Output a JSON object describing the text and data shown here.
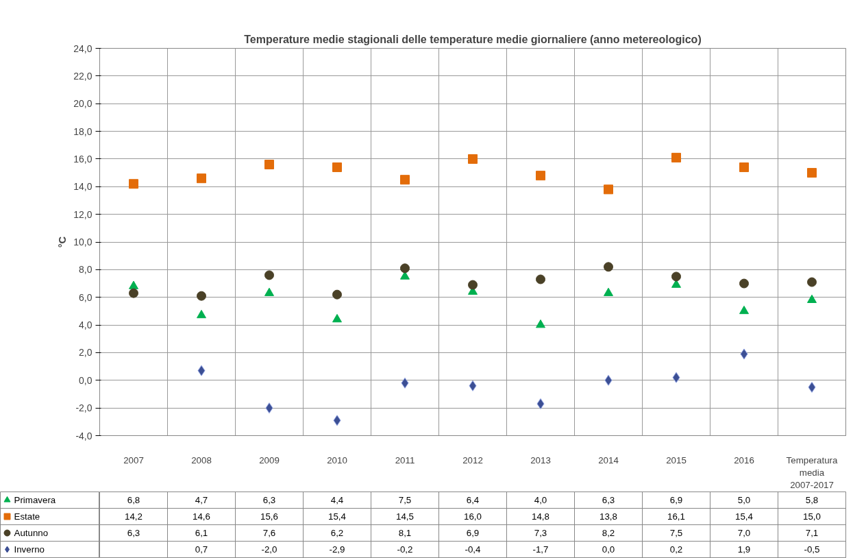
{
  "chart_data": {
    "type": "scatter",
    "title": "Temperature medie stagionali delle temperature medie giornaliere (anno metereologico)",
    "ylabel": "°C",
    "categories": [
      "2007",
      "2008",
      "2009",
      "2010",
      "2011",
      "2012",
      "2013",
      "2014",
      "2015",
      "2016",
      "Temperatura media 2007-2017"
    ],
    "series": [
      {
        "name": "Primavera",
        "color": "#00b050",
        "marker": "triangle",
        "values": [
          6.8,
          4.7,
          6.3,
          4.4,
          7.5,
          6.4,
          4.0,
          6.3,
          6.9,
          5.0,
          5.8
        ],
        "value_labels": [
          "6,8",
          "4,7",
          "6,3",
          "4,4",
          "7,5",
          "6,4",
          "4,0",
          "6,3",
          "6,9",
          "5,0",
          "5,8"
        ]
      },
      {
        "name": "Estate",
        "color": "#e36c09",
        "marker": "square",
        "values": [
          14.2,
          14.6,
          15.6,
          15.4,
          14.5,
          16.0,
          14.8,
          13.8,
          16.1,
          15.4,
          15.0
        ],
        "value_labels": [
          "14,2",
          "14,6",
          "15,6",
          "15,4",
          "14,5",
          "16,0",
          "14,8",
          "13,8",
          "16,1",
          "15,4",
          "15,0"
        ]
      },
      {
        "name": "Autunno",
        "color": "#4a4127",
        "marker": "circle",
        "values": [
          6.3,
          6.1,
          7.6,
          6.2,
          8.1,
          6.9,
          7.3,
          8.2,
          7.5,
          7.0,
          7.1
        ],
        "value_labels": [
          "6,3",
          "6,1",
          "7,6",
          "6,2",
          "8,1",
          "6,9",
          "7,3",
          "8,2",
          "7,5",
          "7,0",
          "7,1"
        ]
      },
      {
        "name": "Inverno",
        "color": "#3c4f94",
        "marker": "diamond",
        "values": [
          null,
          0.7,
          -2.0,
          -2.9,
          -0.2,
          -0.4,
          -1.7,
          0.0,
          0.2,
          1.9,
          -0.5
        ],
        "value_labels": [
          null,
          "0,7",
          "-2,0",
          "-2,9",
          "-0,2",
          "-0,4",
          "-1,7",
          "0,0",
          "0,2",
          "1,9",
          "-0,5"
        ]
      }
    ],
    "ylim": [
      -4,
      24
    ],
    "yticks": [
      {
        "value": -4,
        "label": "-4,0"
      },
      {
        "value": -2,
        "label": "-2,0"
      },
      {
        "value": 0,
        "label": "0,0"
      },
      {
        "value": 2,
        "label": "2,0"
      },
      {
        "value": 4,
        "label": "4,0"
      },
      {
        "value": 6,
        "label": "6,0"
      },
      {
        "value": 8,
        "label": "8,0"
      },
      {
        "value": 10,
        "label": "10,0"
      },
      {
        "value": 12,
        "label": "12,0"
      },
      {
        "value": 14,
        "label": "14,0"
      },
      {
        "value": 16,
        "label": "16,0"
      },
      {
        "value": 18,
        "label": "18,0"
      },
      {
        "value": 20,
        "label": "20,0"
      },
      {
        "value": 22,
        "label": "22,0"
      },
      {
        "value": 24,
        "label": "24,0"
      }
    ],
    "grid": true,
    "legend": "bottom"
  }
}
